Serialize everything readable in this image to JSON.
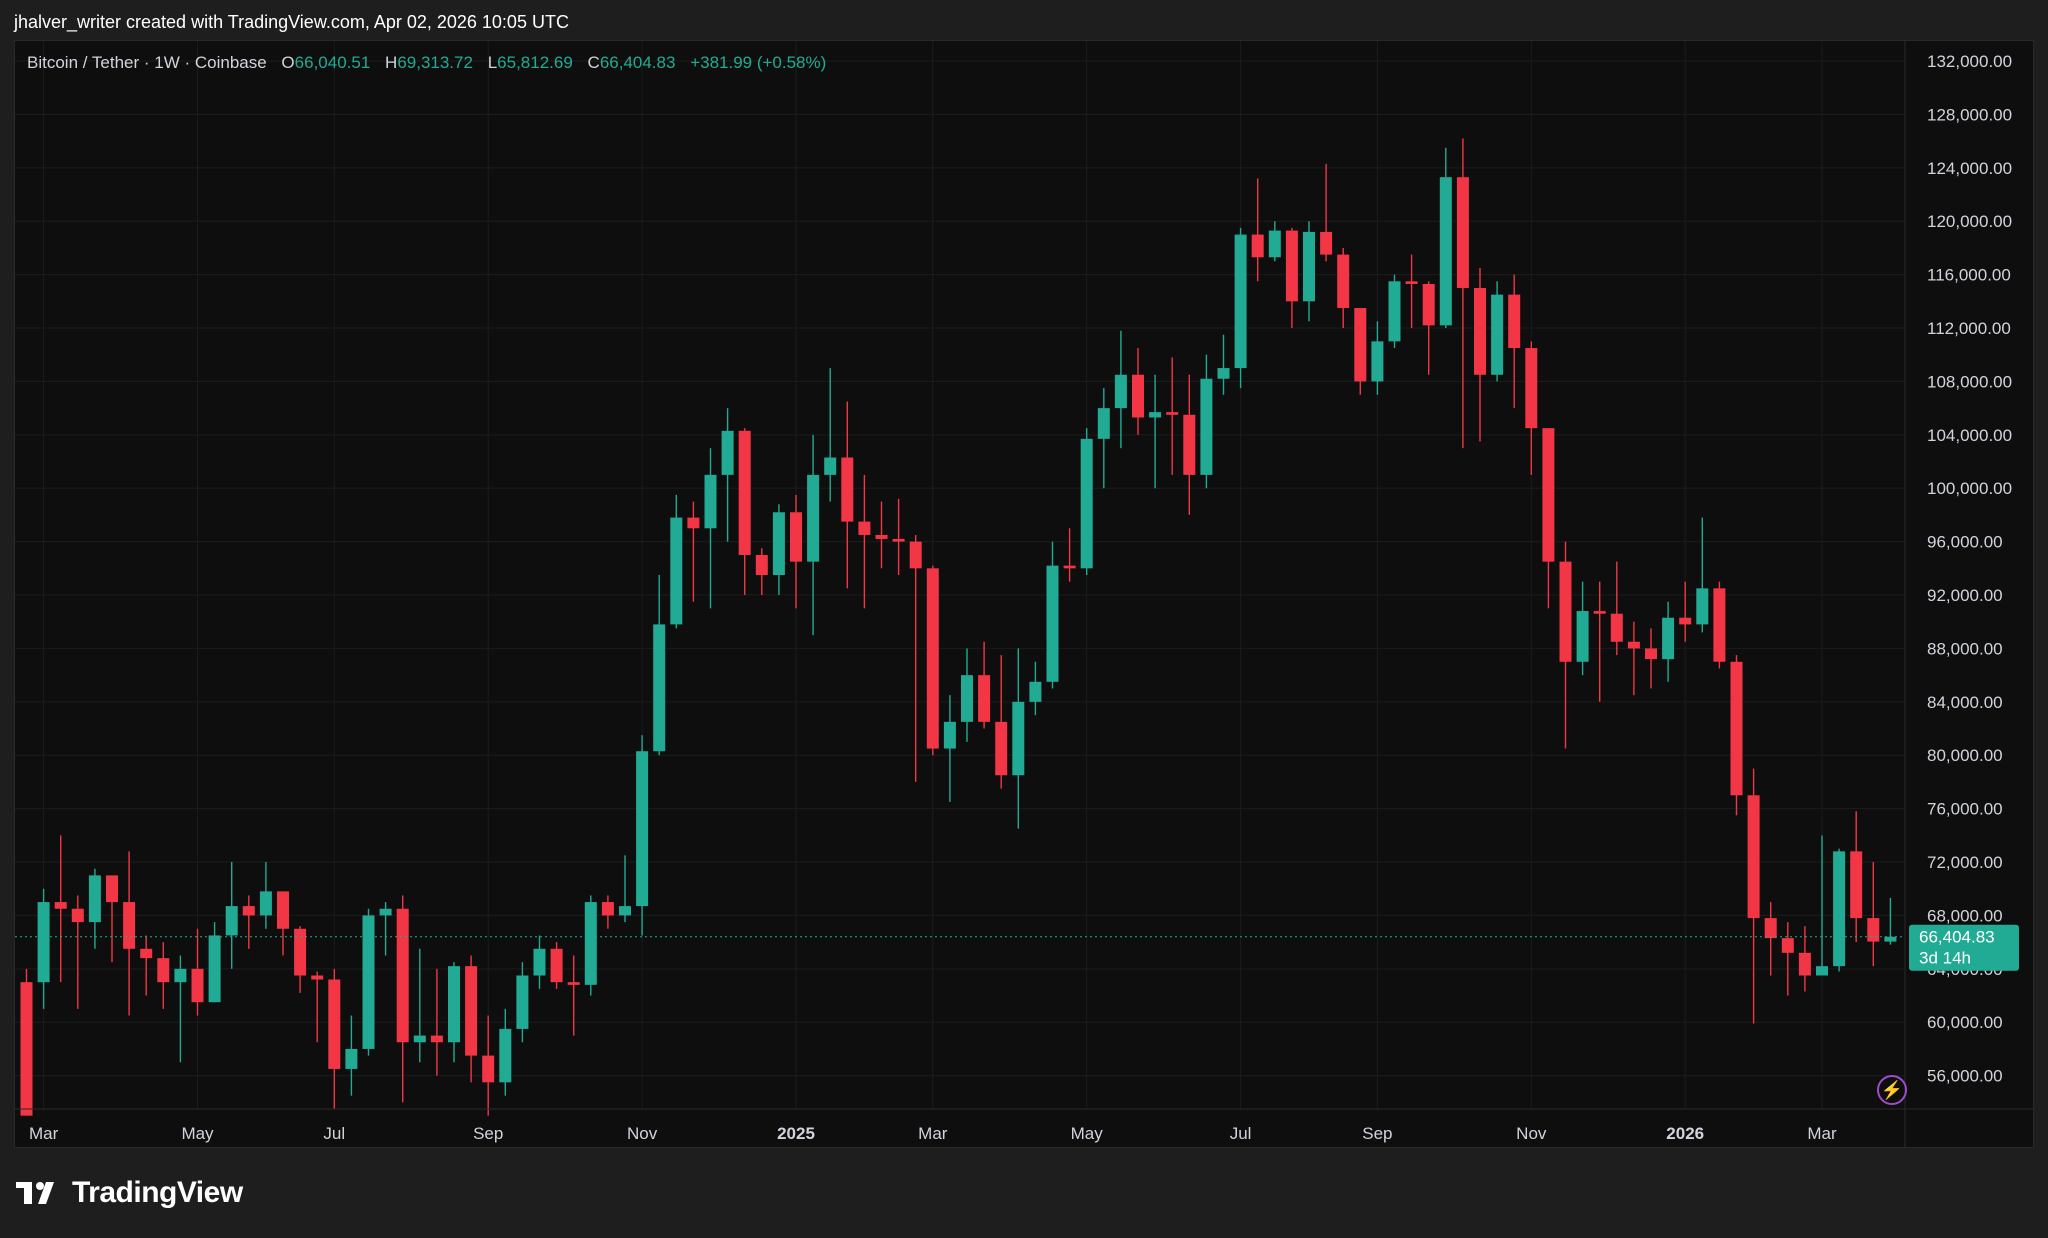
{
  "attribution": "jhalver_writer created with TradingView.com, Apr 02, 2026 10:05 UTC",
  "legend": {
    "symbol": "Bitcoin / Tether · 1W · Coinbase",
    "open_label": "O",
    "open": "66,040.51",
    "high_label": "H",
    "high": "69,313.72",
    "low_label": "L",
    "low": "65,812.69",
    "close_label": "C",
    "close": "66,404.83",
    "change": "+381.99 (+0.58%)"
  },
  "price_tag": {
    "price": "66,404.83",
    "countdown": "3d 14h"
  },
  "brand": "TradingView",
  "colors": {
    "up": "#22ab94",
    "down": "#f23645",
    "background": "#0e0e0e",
    "grid": "#1c1c1c",
    "axis_text": "#d1d4dc"
  },
  "icons": {
    "flash": "lightning-icon"
  },
  "chart_data": {
    "type": "candlestick",
    "title": "Bitcoin / Tether · 1W · Coinbase",
    "ylim": [
      53500,
      133500
    ],
    "y_ticks": [
      56000,
      60000,
      64000,
      68000,
      72000,
      76000,
      80000,
      84000,
      88000,
      92000,
      96000,
      100000,
      104000,
      108000,
      112000,
      116000,
      120000,
      124000,
      128000,
      132000
    ],
    "y_tick_labels": [
      "56,000.00",
      "60,000.00",
      "64,000.00",
      "68,000.00",
      "72,000.00",
      "76,000.00",
      "80,000.00",
      "84,000.00",
      "88,000.00",
      "92,000.00",
      "96,000.00",
      "100,000.00",
      "104,000.00",
      "108,000.00",
      "112,000.00",
      "116,000.00",
      "120,000.00",
      "124,000.00",
      "128,000.00",
      "132,000.00"
    ],
    "x_labels": [
      {
        "label": "Mar",
        "index": 1
      },
      {
        "label": "May",
        "index": 10
      },
      {
        "label": "Jul",
        "index": 18
      },
      {
        "label": "Sep",
        "index": 27
      },
      {
        "label": "Nov",
        "index": 36
      },
      {
        "label": "2025",
        "index": 45,
        "bold": true
      },
      {
        "label": "Mar",
        "index": 53
      },
      {
        "label": "May",
        "index": 62
      },
      {
        "label": "Jul",
        "index": 71
      },
      {
        "label": "Sep",
        "index": 79
      },
      {
        "label": "Nov",
        "index": 88
      },
      {
        "label": "2026",
        "index": 97,
        "bold": true
      },
      {
        "label": "Mar",
        "index": 105
      }
    ],
    "last_price": 66404.83,
    "candles": [
      [
        63000,
        53000,
        64000,
        53000
      ],
      [
        63000,
        69000,
        70000,
        61000
      ],
      [
        69000,
        68500,
        74000,
        63000
      ],
      [
        68500,
        67500,
        69500,
        61000
      ],
      [
        67500,
        71000,
        71500,
        65500
      ],
      [
        71000,
        69000,
        71000,
        64500
      ],
      [
        69000,
        65500,
        72800,
        60500
      ],
      [
        65500,
        64800,
        66500,
        62000
      ],
      [
        64800,
        63000,
        66000,
        61000
      ],
      [
        63000,
        64000,
        65000,
        57000
      ],
      [
        64000,
        61500,
        67000,
        60500
      ],
      [
        61500,
        66500,
        67500,
        61500
      ],
      [
        66500,
        68700,
        72000,
        64000
      ],
      [
        68700,
        68000,
        69500,
        65500
      ],
      [
        68000,
        69800,
        72000,
        67000
      ],
      [
        69800,
        67000,
        69800,
        65000
      ],
      [
        67000,
        63500,
        67200,
        62200
      ],
      [
        63500,
        63200,
        63800,
        58500
      ],
      [
        63200,
        56500,
        64000,
        53500
      ],
      [
        56500,
        58000,
        60500,
        54500
      ],
      [
        58000,
        68000,
        68500,
        57500
      ],
      [
        68000,
        68500,
        69000,
        65000
      ],
      [
        68500,
        58500,
        69500,
        54000
      ],
      [
        58500,
        59000,
        65500,
        57000
      ],
      [
        59000,
        58500,
        64000,
        56000
      ],
      [
        58500,
        64200,
        64500,
        57000
      ],
      [
        64200,
        57500,
        65000,
        55500
      ],
      [
        57500,
        55500,
        60500,
        53000
      ],
      [
        55500,
        59500,
        61000,
        54500
      ],
      [
        59500,
        63500,
        64500,
        58500
      ],
      [
        63500,
        65500,
        66500,
        62500
      ],
      [
        65500,
        63000,
        66000,
        62500
      ],
      [
        63000,
        62800,
        65000,
        59000
      ],
      [
        62800,
        69000,
        69500,
        62000
      ],
      [
        69000,
        68000,
        69500,
        67000
      ],
      [
        68000,
        68700,
        72500,
        67500
      ],
      [
        68700,
        80300,
        81500,
        66500
      ],
      [
        80300,
        89800,
        93500,
        80000
      ],
      [
        89800,
        97800,
        99500,
        89500
      ],
      [
        97800,
        97000,
        99000,
        91500
      ],
      [
        97000,
        101000,
        103000,
        91000
      ],
      [
        101000,
        104300,
        106000,
        96000
      ],
      [
        104300,
        95000,
        104500,
        92000
      ],
      [
        95000,
        93500,
        95500,
        92000
      ],
      [
        93500,
        98200,
        98800,
        92000
      ],
      [
        98200,
        94500,
        99500,
        91000
      ],
      [
        94500,
        101000,
        104000,
        89000
      ],
      [
        101000,
        102300,
        109000,
        99000
      ],
      [
        102300,
        97500,
        106500,
        92500
      ],
      [
        97500,
        96500,
        101000,
        91000
      ],
      [
        96500,
        96200,
        99000,
        94000
      ],
      [
        96200,
        96000,
        99200,
        93500
      ],
      [
        96000,
        94000,
        96500,
        78000
      ],
      [
        94000,
        80500,
        94200,
        80000
      ],
      [
        80500,
        82500,
        84500,
        76500
      ],
      [
        82500,
        86000,
        88000,
        81000
      ],
      [
        86000,
        82500,
        88500,
        82000
      ],
      [
        82500,
        78500,
        87500,
        77500
      ],
      [
        78500,
        84000,
        88000,
        74500
      ],
      [
        84000,
        85500,
        87000,
        83000
      ],
      [
        85500,
        94200,
        96000,
        85000
      ],
      [
        94200,
        94000,
        97000,
        93000
      ],
      [
        94000,
        103700,
        104500,
        93500
      ],
      [
        103700,
        106000,
        107500,
        100000
      ],
      [
        106000,
        108500,
        111800,
        103000
      ],
      [
        108500,
        105300,
        110500,
        104000
      ],
      [
        105300,
        105700,
        108500,
        100000
      ],
      [
        105700,
        105500,
        109800,
        101000
      ],
      [
        105500,
        101000,
        108500,
        98000
      ],
      [
        101000,
        108200,
        110000,
        100000
      ],
      [
        108200,
        109000,
        111500,
        107000
      ],
      [
        109000,
        119000,
        119500,
        107500
      ],
      [
        119000,
        117300,
        123200,
        115500
      ],
      [
        117300,
        119300,
        120000,
        117000
      ],
      [
        119300,
        114000,
        119500,
        112000
      ],
      [
        114000,
        119200,
        120000,
        112500
      ],
      [
        119200,
        117500,
        124300,
        117000
      ],
      [
        117500,
        113500,
        118000,
        112000
      ],
      [
        113500,
        108000,
        113500,
        107000
      ],
      [
        108000,
        111000,
        112500,
        107000
      ],
      [
        111000,
        115500,
        116000,
        110500
      ],
      [
        115500,
        115300,
        117500,
        112000
      ],
      [
        115300,
        112200,
        115500,
        108500
      ],
      [
        112200,
        123300,
        125500,
        112000
      ],
      [
        123300,
        115000,
        126200,
        103000
      ],
      [
        115000,
        108500,
        116500,
        103500
      ],
      [
        108500,
        114500,
        115500,
        108000
      ],
      [
        114500,
        110500,
        116000,
        106000
      ],
      [
        110500,
        104500,
        111000,
        101000
      ],
      [
        104500,
        94500,
        104500,
        91000
      ],
      [
        94500,
        87000,
        96000,
        80500
      ],
      [
        87000,
        90800,
        93000,
        86000
      ],
      [
        90800,
        90600,
        93000,
        84000
      ],
      [
        90600,
        88500,
        94500,
        87500
      ],
      [
        88500,
        88000,
        90000,
        84500
      ],
      [
        88000,
        87200,
        89500,
        85000
      ],
      [
        87200,
        90300,
        91500,
        85500
      ],
      [
        90300,
        89800,
        93000,
        88500
      ],
      [
        89800,
        92500,
        97800,
        89200
      ],
      [
        92500,
        87000,
        93000,
        86500
      ],
      [
        87000,
        77000,
        87500,
        75500
      ],
      [
        77000,
        67800,
        79000,
        59900
      ],
      [
        67800,
        66300,
        69000,
        63500
      ],
      [
        66300,
        65200,
        67500,
        62000
      ],
      [
        65200,
        63500,
        67200,
        62300
      ],
      [
        63500,
        64200,
        74000,
        63500
      ],
      [
        64200,
        72800,
        73000,
        63800
      ],
      [
        72800,
        67800,
        75800,
        66000
      ],
      [
        67800,
        66040,
        72000,
        64200
      ],
      [
        66040.51,
        66404.83,
        69313.72,
        65812.69
      ]
    ]
  }
}
